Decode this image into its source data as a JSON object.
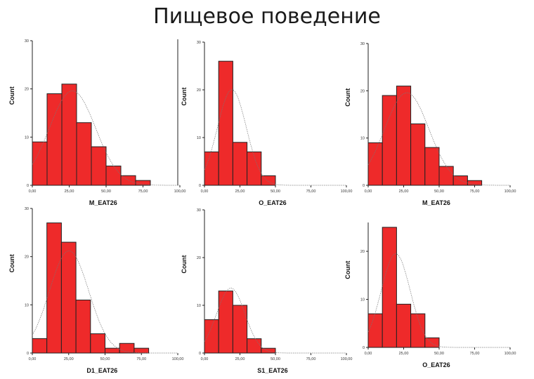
{
  "page": {
    "title": "Пищевое поведение"
  },
  "chart_data": [
    {
      "type": "bar",
      "xlabel": "M_EAT26",
      "ylabel": "Count",
      "ylim": [
        0,
        30
      ],
      "xlim": [
        0,
        100
      ],
      "bin_width": 10,
      "bin_start": 0,
      "values": [
        9,
        19,
        21,
        13,
        8,
        4,
        2,
        1
      ],
      "yticks": [
        0,
        10,
        20,
        30
      ],
      "yticklabels": [
        "0",
        "10",
        "20",
        "30"
      ],
      "xticks": [
        0,
        25,
        50,
        75,
        100
      ],
      "xticklabels": [
        "0,00",
        "25,00",
        "50,00",
        "75,00",
        "100,00"
      ],
      "normal_curve": true,
      "frame_right": true
    },
    {
      "type": "bar",
      "xlabel": "O_EAT26",
      "ylabel": "Count",
      "ylim": [
        0,
        30
      ],
      "xlim": [
        0,
        100
      ],
      "bin_width": 10,
      "bin_start": 0,
      "values": [
        7,
        26,
        9,
        7,
        2
      ],
      "yticks": [
        0,
        10,
        20,
        30
      ],
      "yticklabels": [
        "0",
        "10",
        "20",
        "30"
      ],
      "xticks": [
        0,
        25,
        50,
        75,
        100
      ],
      "xticklabels": [
        "0,00",
        "25,00",
        "50,00",
        "75,00",
        "100,00"
      ],
      "normal_curve": true
    },
    {
      "type": "bar",
      "xlabel": "M_EAT26",
      "ylabel": "Count",
      "ylim": [
        0,
        30
      ],
      "xlim": [
        0,
        100
      ],
      "bin_width": 10,
      "bin_start": 0,
      "values": [
        9,
        19,
        21,
        13,
        8,
        4,
        2,
        1
      ],
      "yticks": [
        0,
        10,
        20,
        30
      ],
      "yticklabels": [
        "0",
        "10",
        "20",
        "30"
      ],
      "xticks": [
        0,
        25,
        50,
        75,
        100
      ],
      "xticklabels": [
        "0,00",
        "25,00",
        "50,00",
        "75,00",
        "100,00"
      ],
      "normal_curve": true
    },
    {
      "type": "bar",
      "xlabel": "D1_EAT26",
      "ylabel": "Count",
      "ylim": [
        0,
        30
      ],
      "xlim": [
        0,
        100
      ],
      "bin_width": 10,
      "bin_start": 0,
      "values": [
        3,
        27,
        23,
        11,
        4,
        1,
        2,
        1
      ],
      "yticks": [
        0,
        10,
        20,
        30
      ],
      "yticklabels": [
        "0",
        "10",
        "20",
        "30"
      ],
      "xticks": [
        0,
        25,
        50,
        75,
        100
      ],
      "xticklabels": [
        "0,00",
        "25,00",
        "50,00",
        "75,00",
        "100,00"
      ],
      "normal_curve": true
    },
    {
      "type": "bar",
      "xlabel": "S1_EAT26",
      "ylabel": "Count",
      "ylim": [
        0,
        30
      ],
      "xlim": [
        0,
        100
      ],
      "bin_width": 10,
      "bin_start": 0,
      "values": [
        7,
        13,
        10,
        3,
        1
      ],
      "yticks": [
        0,
        10,
        20,
        30
      ],
      "yticklabels": [
        "0",
        "10",
        "20",
        "30"
      ],
      "xticks": [
        0,
        25,
        50,
        75,
        100
      ],
      "xticklabels": [
        "0,00",
        "25,00",
        "50,00",
        "75,00",
        "100,00"
      ],
      "normal_curve": true
    },
    {
      "type": "bar",
      "xlabel": "O_EAT26",
      "ylabel": "Count",
      "ylim": [
        0,
        26
      ],
      "xlim": [
        0,
        100
      ],
      "bin_width": 10,
      "bin_start": 0,
      "values": [
        7,
        25,
        9,
        7,
        2
      ],
      "yticks": [
        0,
        10,
        20
      ],
      "yticklabels": [
        "0",
        "10",
        "20"
      ],
      "xticks": [
        0,
        25,
        50,
        75,
        100
      ],
      "xticklabels": [
        "0,00",
        "25,00",
        "50,00",
        "75,00",
        "100,00"
      ],
      "normal_curve": true
    }
  ]
}
